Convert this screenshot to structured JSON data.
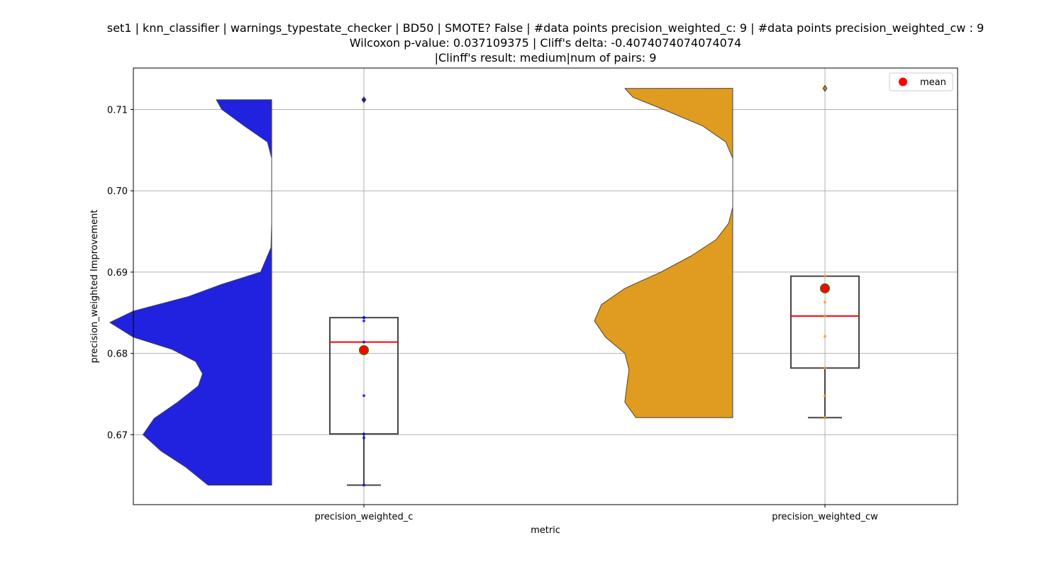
{
  "chart_data": {
    "type": "violin+box",
    "title_lines": [
      "set1 | knn_classifier | warnings_typestate_checker | BD50 | SMOTE? False | #data points precision_weighted_c: 9 | #data points precision_weighted_cw : 9",
      "Wilcoxon p-value: 0.037109375 | Cliff's delta: -0.4074074074074074",
      "|Clinff's result: medium|num of pairs: 9"
    ],
    "xlabel": "metric",
    "ylabel": "precision_weighted Improvement",
    "categories": [
      "precision_weighted_c",
      "precision_weighted_cw"
    ],
    "ylim": [
      0.6614,
      0.7151
    ],
    "yticks": [
      0.67,
      0.68,
      0.69,
      0.7,
      0.71
    ],
    "ytick_labels": [
      "0.67",
      "0.68",
      "0.69",
      "0.70",
      "0.71"
    ],
    "grid": true,
    "legend": {
      "placement": "top-right",
      "entries": [
        {
          "label": "mean",
          "color": "#ff0000"
        }
      ]
    },
    "series": [
      {
        "category": "precision_weighted_c",
        "color": "#0000ff",
        "violin_fill": "#2121e0",
        "violin_range": [
          0.6638,
          0.7112
        ],
        "box": {
          "q1": 0.6701,
          "median": 0.6814,
          "q3": 0.6844,
          "whisker_low": 0.6638,
          "whisker_high": 0.6844,
          "mean": 0.6804
        },
        "outliers": [
          0.7112
        ],
        "points": [
          0.6638,
          0.6696,
          0.6701,
          0.6748,
          0.6814,
          0.684,
          0.6844,
          0.6844,
          0.7112
        ],
        "density": [
          [
            0.6638,
            0.46
          ],
          [
            0.666,
            0.62
          ],
          [
            0.668,
            0.8
          ],
          [
            0.67,
            0.93
          ],
          [
            0.672,
            0.85
          ],
          [
            0.674,
            0.68
          ],
          [
            0.676,
            0.53
          ],
          [
            0.6775,
            0.5
          ],
          [
            0.679,
            0.55
          ],
          [
            0.6805,
            0.72
          ],
          [
            0.682,
            1.0
          ],
          [
            0.6838,
            1.17
          ],
          [
            0.6852,
            1.0
          ],
          [
            0.687,
            0.6
          ],
          [
            0.6885,
            0.36
          ],
          [
            0.69,
            0.08
          ],
          [
            0.693,
            0.005
          ],
          [
            0.696,
            0.0
          ],
          [
            0.704,
            0.0
          ],
          [
            0.706,
            0.03
          ],
          [
            0.708,
            0.2
          ],
          [
            0.71,
            0.36
          ],
          [
            0.7112,
            0.4
          ]
        ]
      },
      {
        "category": "precision_weighted_cw",
        "color": "#ff9900",
        "violin_fill": "#e09c20",
        "violin_range": [
          0.6721,
          0.7126
        ],
        "box": {
          "q1": 0.6782,
          "median": 0.6846,
          "q3": 0.6895,
          "whisker_low": 0.6721,
          "whisker_high": 0.6895,
          "mean": 0.688
        },
        "outliers": [
          0.7126
        ],
        "points": [
          0.6721,
          0.6748,
          0.6782,
          0.6821,
          0.6846,
          0.6863,
          0.688,
          0.6895,
          0.7126
        ],
        "density": [
          [
            0.6721,
            0.7
          ],
          [
            0.674,
            0.78
          ],
          [
            0.6755,
            0.77
          ],
          [
            0.678,
            0.75
          ],
          [
            0.68,
            0.78
          ],
          [
            0.682,
            0.92
          ],
          [
            0.684,
            1.0
          ],
          [
            0.686,
            0.95
          ],
          [
            0.688,
            0.78
          ],
          [
            0.69,
            0.52
          ],
          [
            0.692,
            0.3
          ],
          [
            0.694,
            0.12
          ],
          [
            0.696,
            0.03
          ],
          [
            0.698,
            0.0
          ],
          [
            0.704,
            0.0
          ],
          [
            0.706,
            0.05
          ],
          [
            0.708,
            0.22
          ],
          [
            0.71,
            0.5
          ],
          [
            0.7115,
            0.72
          ],
          [
            0.7126,
            0.78
          ]
        ]
      }
    ]
  }
}
